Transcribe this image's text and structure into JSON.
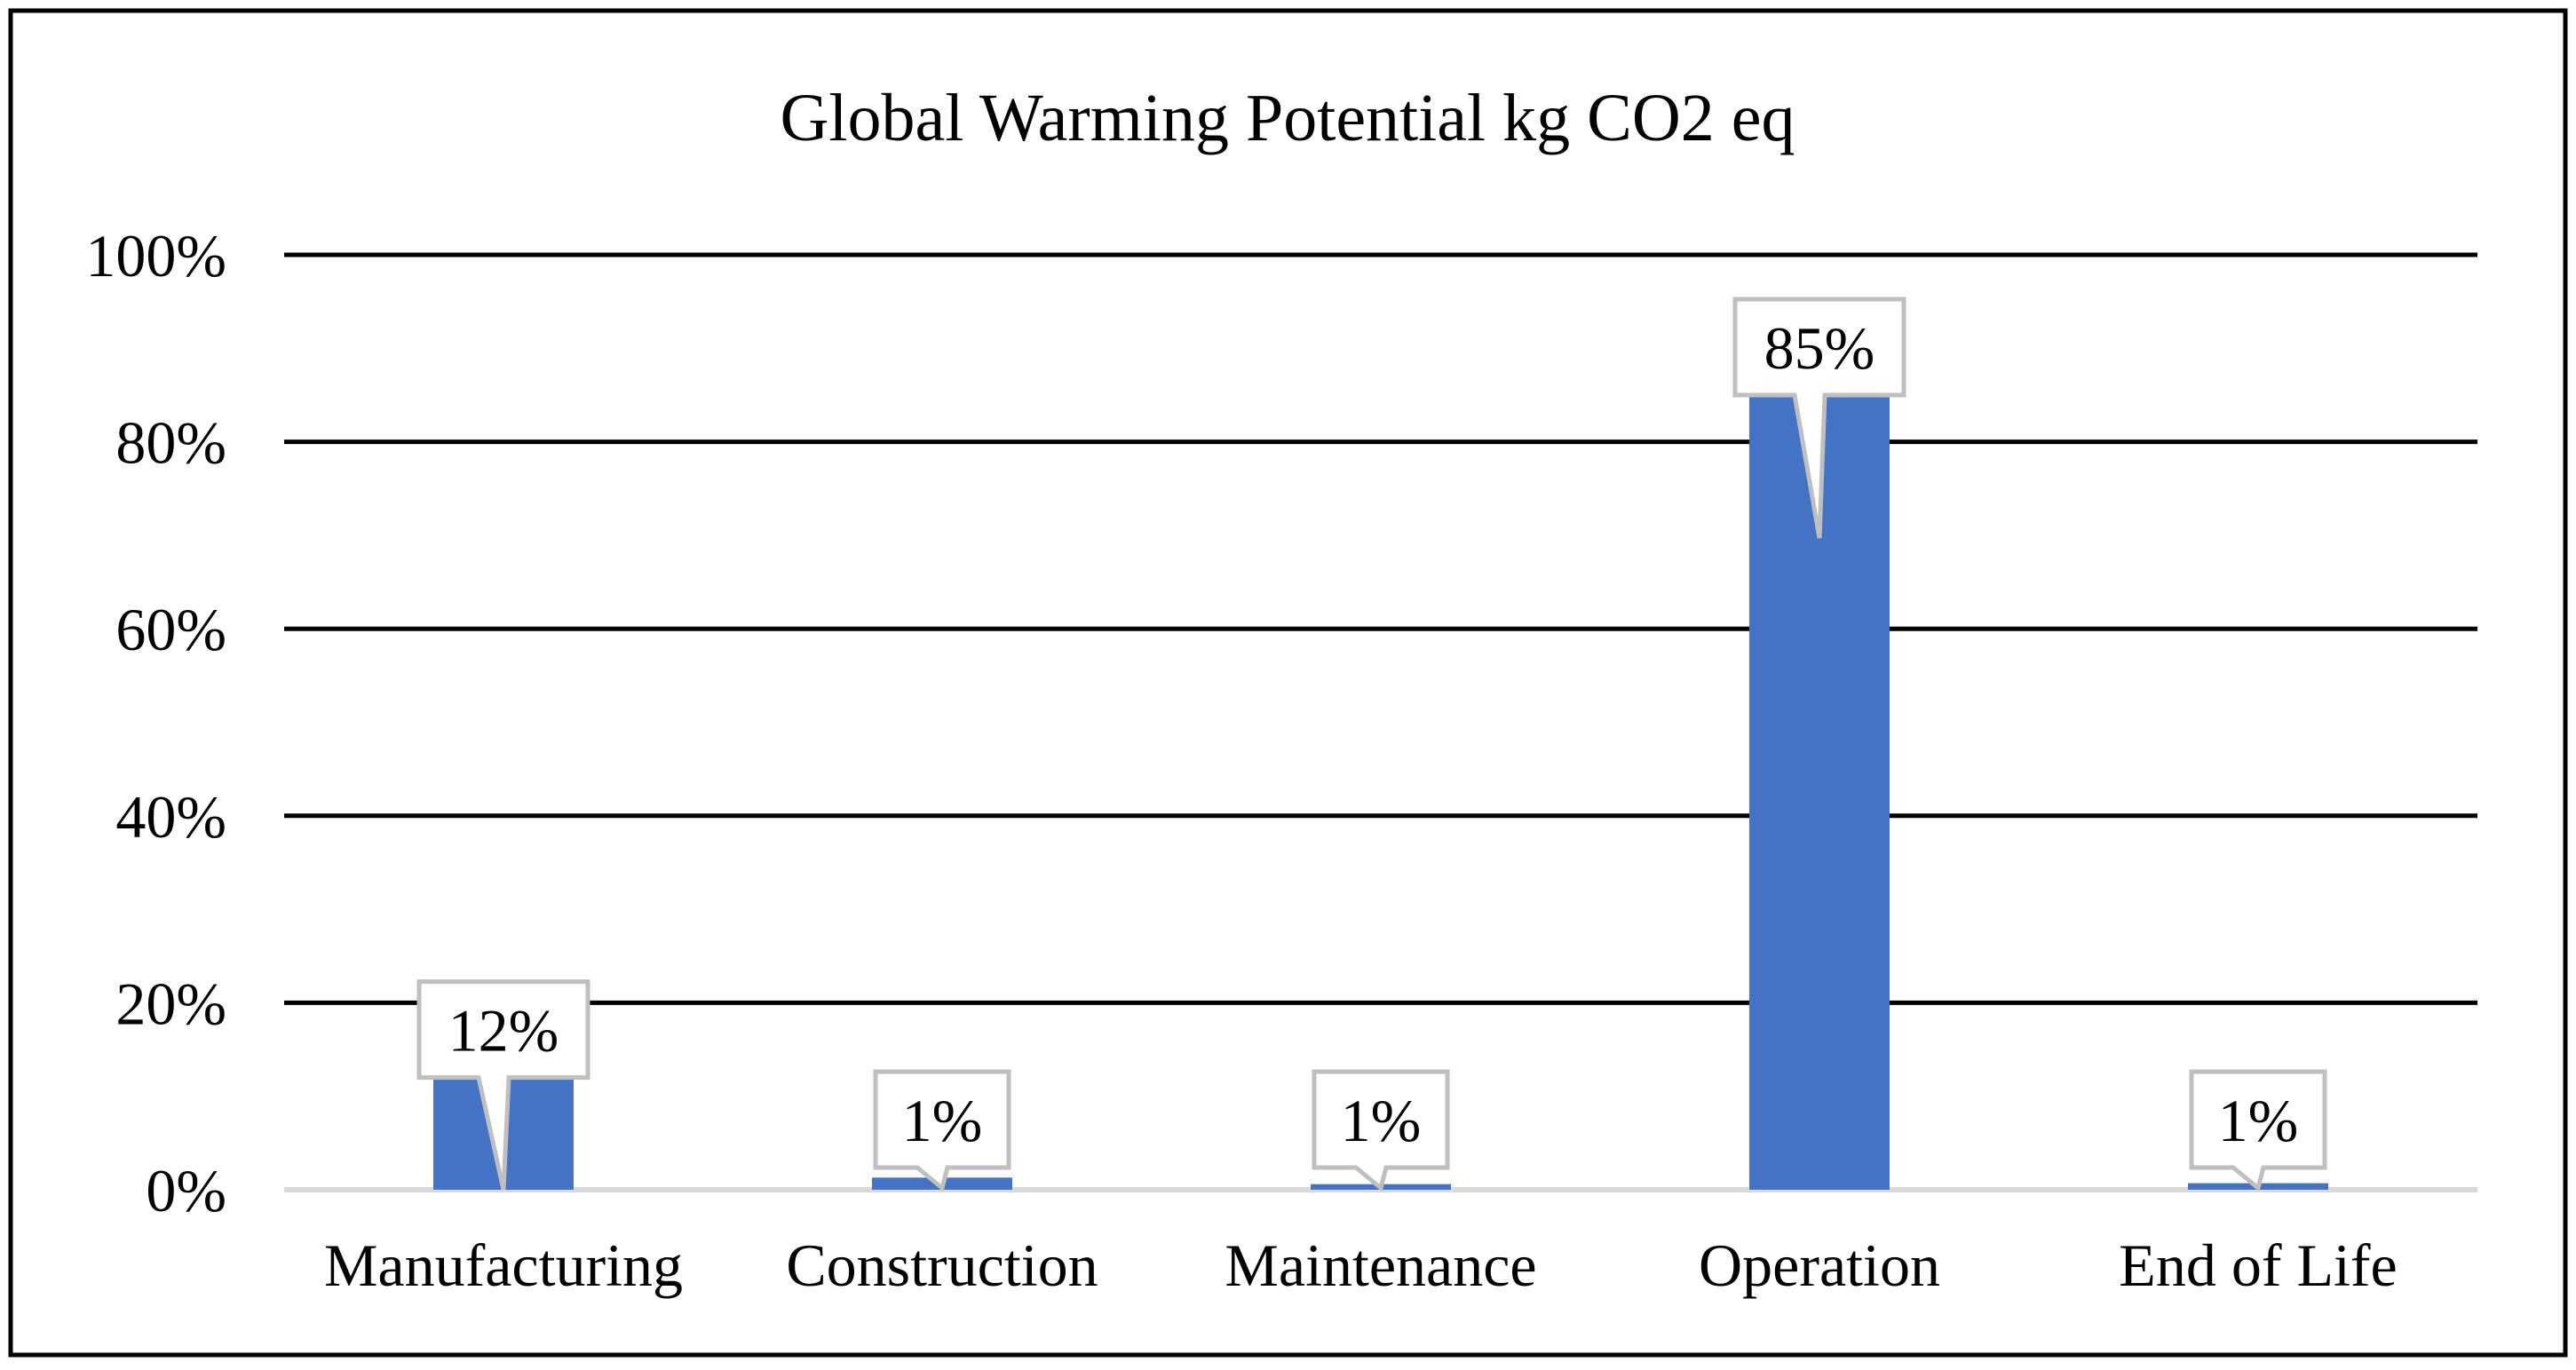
{
  "chart_data": {
    "type": "bar",
    "title": "Global Warming Potential kg CO2 eq",
    "categories": [
      "Manufacturing",
      "Construction",
      "Maintenance",
      "Operation",
      "End of Life"
    ],
    "values": [
      12,
      1.3,
      0.6,
      85,
      0.7
    ],
    "data_labels": [
      "12%",
      "1%",
      "1%",
      "85%",
      "1%"
    ],
    "ylim": [
      0,
      100
    ],
    "yticks": [
      0,
      20,
      40,
      60,
      80,
      100
    ],
    "ytick_labels": [
      "0%",
      "20%",
      "40%",
      "60%",
      "80%",
      "100%"
    ],
    "xlabel": "",
    "ylabel": "",
    "grid": true,
    "legend": "none",
    "bar_color": "#4472C4",
    "gridline_color": "#000000",
    "baseline_color": "#D9D9D9",
    "callout_border_color": "#BFBFBF"
  }
}
